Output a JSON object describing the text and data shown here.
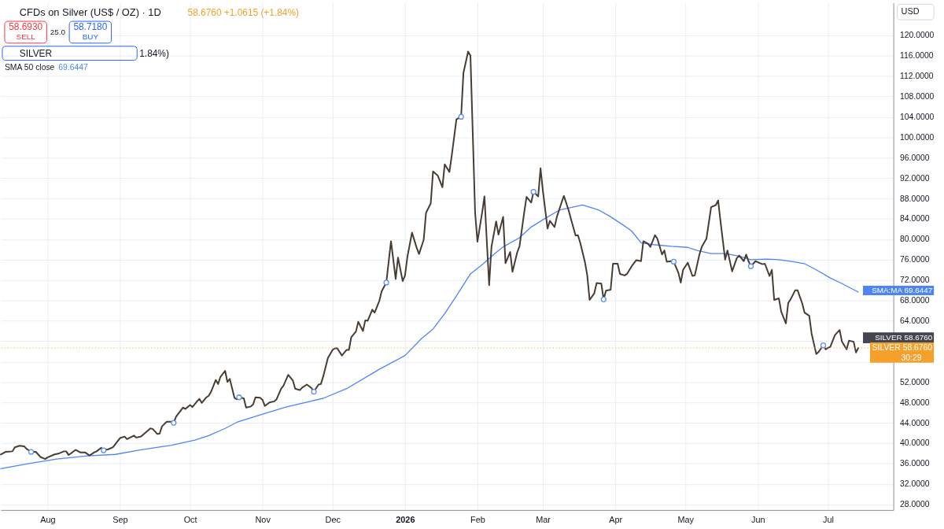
{
  "chart_data": {
    "type": "line",
    "title": "CFDs on Silver (US$ / OZ) · 1D",
    "xlim": [
      "2025-07-12",
      "2026-07-29"
    ],
    "xticks": [
      {
        "value": "2025-08-01",
        "label": "Aug"
      },
      {
        "value": "2025-09-01",
        "label": "Sep"
      },
      {
        "value": "2025-10-01",
        "label": "Oct"
      },
      {
        "value": "2025-11-01",
        "label": "Nov"
      },
      {
        "value": "2025-12-01",
        "label": "Dec"
      },
      {
        "value": "2026-01-01",
        "label": "2026"
      },
      {
        "value": "2026-02-01",
        "label": "Feb"
      },
      {
        "value": "2026-03-01",
        "label": "Mar"
      },
      {
        "value": "2026-04-01",
        "label": "Apr"
      },
      {
        "value": "2026-05-01",
        "label": "May"
      },
      {
        "value": "2026-06-01",
        "label": "Jun"
      },
      {
        "value": "2026-07-01",
        "label": "Jul"
      }
    ],
    "ylim": [
      26.9,
      126.4
    ],
    "yticks": [
      {
        "value": 28,
        "label": "28.0000"
      },
      {
        "value": 32,
        "label": "32.0000"
      },
      {
        "value": 36,
        "label": "36.0000"
      },
      {
        "value": 40,
        "label": "40.0000"
      },
      {
        "value": 44,
        "label": "44.0000"
      },
      {
        "value": 48,
        "label": "48.0000"
      },
      {
        "value": 52,
        "label": "52.0000"
      },
      {
        "value": 56,
        "label": null
      },
      {
        "value": 60,
        "label": null
      },
      {
        "value": 64,
        "label": "64.0000"
      },
      {
        "value": 68,
        "label": "68.0000"
      },
      {
        "value": 72,
        "label": "72.0000"
      },
      {
        "value": 76,
        "label": "76.0000"
      },
      {
        "value": 80,
        "label": "80.0000"
      },
      {
        "value": 84,
        "label": "84.0000"
      },
      {
        "value": 88,
        "label": "88.0000"
      },
      {
        "value": 92,
        "label": "92.0000"
      },
      {
        "value": 96,
        "label": "96.0000"
      },
      {
        "value": 100,
        "label": "100.0000"
      },
      {
        "value": 104,
        "label": "104.0000"
      },
      {
        "value": 108,
        "label": "108.0000"
      },
      {
        "value": 112,
        "label": "112.0000"
      },
      {
        "value": 116,
        "label": "116.0000"
      },
      {
        "value": 120,
        "label": "120.0000"
      }
    ],
    "grid": true,
    "series": [
      {
        "color": "#4d85f5",
        "x": [
          "2025-07-12",
          "2025-07-24",
          "2025-08-05",
          "2025-08-18",
          "2025-08-30",
          "2025-09-10",
          "2025-09-23",
          "2025-10-03",
          "2025-10-09",
          "2025-10-16",
          "2025-10-21",
          "2025-11-01",
          "2025-11-11",
          "2025-11-27",
          "2025-12-07",
          "2025-12-21",
          "2026-01-01",
          "2026-01-08",
          "2026-01-13",
          "2026-01-18",
          "2026-01-23",
          "2026-01-29",
          "2026-02-03",
          "2026-02-08",
          "2026-02-12",
          "2026-02-19",
          "2026-02-24",
          "2026-03-02",
          "2026-03-08",
          "2026-03-18",
          "2026-03-25",
          "2026-03-30",
          "2026-04-04",
          "2026-04-08",
          "2026-04-12",
          "2026-04-18",
          "2026-04-25",
          "2026-05-02",
          "2026-05-06",
          "2026-05-12",
          "2026-05-18",
          "2026-05-24",
          "2026-05-29",
          "2026-06-05",
          "2026-06-10",
          "2026-06-16",
          "2026-06-21",
          "2026-06-26",
          "2026-07-02",
          "2026-07-07",
          "2026-07-14"
        ],
        "values": [
          35.0,
          36.0,
          36.9,
          37.5,
          37.8,
          38.7,
          39.6,
          40.6,
          41.5,
          42.9,
          44.1,
          45.7,
          47.1,
          48.8,
          50.7,
          54.5,
          57.2,
          60.5,
          62.4,
          65.4,
          68.9,
          73.2,
          75.0,
          77.0,
          78.5,
          80.3,
          82.4,
          84.1,
          85.7,
          86.7,
          85.7,
          84.4,
          82.9,
          81.6,
          79.3,
          78.9,
          78.6,
          78.4,
          77.8,
          77.2,
          77.2,
          76.7,
          76.0,
          76.1,
          76.0,
          75.6,
          75.2,
          74.0,
          72.4,
          71.3,
          69.6447
        ]
      },
      {
        "color": "#463c31",
        "x": [
          "2025-07-12",
          "2025-07-14",
          "2025-07-17",
          "2025-07-18",
          "2025-07-20",
          "2025-07-22",
          "2025-07-23",
          "2025-07-25",
          "2025-07-27",
          "2025-07-29",
          "2025-07-31",
          "2025-08-01",
          "2025-08-04",
          "2025-08-06",
          "2025-08-08",
          "2025-08-09",
          "2025-08-10",
          "2025-08-11",
          "2025-08-13",
          "2025-08-15",
          "2025-08-17",
          "2025-08-19",
          "2025-08-21",
          "2025-08-22",
          "2025-08-24",
          "2025-08-25",
          "2025-08-27",
          "2025-08-29",
          "2025-08-30",
          "2025-09-01",
          "2025-09-03",
          "2025-09-04",
          "2025-09-07",
          "2025-09-08",
          "2025-09-10",
          "2025-09-11",
          "2025-09-14",
          "2025-09-15",
          "2025-09-17",
          "2025-09-18",
          "2025-09-19",
          "2025-09-21",
          "2025-09-23",
          "2025-09-24",
          "2025-09-25",
          "2025-09-28",
          "2025-09-29",
          "2025-10-01",
          "2025-10-02",
          "2025-10-04",
          "2025-10-05",
          "2025-10-06",
          "2025-10-08",
          "2025-10-09",
          "2025-10-10",
          "2025-10-12",
          "2025-10-13",
          "2025-10-14",
          "2025-10-16",
          "2025-10-17",
          "2025-10-18",
          "2025-10-20",
          "2025-10-21",
          "2025-10-22",
          "2025-10-24",
          "2025-10-25",
          "2025-10-27",
          "2025-10-28",
          "2025-10-29",
          "2025-10-31",
          "2025-11-01",
          "2025-11-02",
          "2025-11-04",
          "2025-11-06",
          "2025-11-07",
          "2025-11-09",
          "2025-11-10",
          "2025-11-12",
          "2025-11-14",
          "2025-11-15",
          "2025-11-17",
          "2025-11-18",
          "2025-11-20",
          "2025-11-22",
          "2025-11-23",
          "2025-11-25",
          "2025-11-26",
          "2025-11-27",
          "2025-11-29",
          "2025-12-01",
          "2025-12-02",
          "2025-12-03",
          "2025-12-05",
          "2025-12-07",
          "2025-12-08",
          "2025-12-09",
          "2025-12-11",
          "2025-12-12",
          "2025-12-14",
          "2025-12-15",
          "2025-12-16",
          "2025-12-18",
          "2025-12-19",
          "2025-12-21",
          "2025-12-22",
          "2025-12-24",
          "2025-12-26",
          "2025-12-28",
          "2025-12-29",
          "2025-12-31",
          "2026-01-01",
          "2026-01-02",
          "2026-01-04",
          "2026-01-06",
          "2026-01-07",
          "2026-01-09",
          "2026-01-10",
          "2026-01-12",
          "2026-01-13",
          "2026-01-15",
          "2026-01-17",
          "2026-01-18",
          "2026-01-20",
          "2026-01-21",
          "2026-01-23",
          "2026-01-25",
          "2026-01-26",
          "2026-01-28",
          "2026-01-29",
          "2026-01-31",
          "2026-02-01",
          "2026-02-03",
          "2026-02-04",
          "2026-02-06",
          "2026-02-07",
          "2026-02-09",
          "2026-02-10",
          "2026-02-12",
          "2026-02-13",
          "2026-02-15",
          "2026-02-16",
          "2026-02-18",
          "2026-02-19",
          "2026-02-21",
          "2026-02-22",
          "2026-02-24",
          "2026-02-25",
          "2026-02-27",
          "2026-02-28",
          "2026-03-01",
          "2026-03-03",
          "2026-03-04",
          "2026-03-06",
          "2026-03-07",
          "2026-03-09",
          "2026-03-10",
          "2026-03-12",
          "2026-03-13",
          "2026-03-15",
          "2026-03-16",
          "2026-03-17",
          "2026-03-19",
          "2026-03-20",
          "2026-03-21",
          "2026-03-23",
          "2026-03-24",
          "2026-03-26",
          "2026-03-27",
          "2026-03-28",
          "2026-03-30",
          "2026-03-31",
          "2026-04-02",
          "2026-04-03",
          "2026-04-05",
          "2026-04-06",
          "2026-04-08",
          "2026-04-10",
          "2026-04-12",
          "2026-04-13",
          "2026-04-15",
          "2026-04-16",
          "2026-04-18",
          "2026-04-19",
          "2026-04-21",
          "2026-04-22",
          "2026-04-23",
          "2026-04-25",
          "2026-04-26",
          "2026-04-28",
          "2026-04-29",
          "2026-04-30",
          "2026-05-02",
          "2026-05-04",
          "2026-05-05",
          "2026-05-07",
          "2026-05-08",
          "2026-05-10",
          "2026-05-12",
          "2026-05-14",
          "2026-05-15",
          "2026-05-16",
          "2026-05-18",
          "2026-05-19",
          "2026-05-21",
          "2026-05-23",
          "2026-05-24",
          "2026-05-26",
          "2026-05-27",
          "2026-05-28",
          "2026-05-29",
          "2026-05-31",
          "2026-06-01",
          "2026-06-03",
          "2026-06-04",
          "2026-06-06",
          "2026-06-07",
          "2026-06-08",
          "2026-06-10",
          "2026-06-11",
          "2026-06-13",
          "2026-06-14",
          "2026-06-15",
          "2026-06-17",
          "2026-06-18",
          "2026-06-20",
          "2026-06-21",
          "2026-06-23",
          "2026-06-24",
          "2026-06-26",
          "2026-06-27",
          "2026-06-29",
          "2026-06-30",
          "2026-07-01",
          "2026-07-02",
          "2026-07-04",
          "2026-07-06",
          "2026-07-07",
          "2026-07-09",
          "2026-07-10",
          "2026-07-12",
          "2026-07-13",
          "2026-07-14"
        ],
        "values": [
          37.8,
          38.3,
          38.4,
          39.2,
          39.5,
          39.4,
          38.9,
          38.3,
          38.3,
          37.3,
          36.9,
          37.2,
          37.8,
          38.0,
          38.4,
          38.4,
          37.7,
          38.0,
          38.7,
          38.2,
          38.2,
          37.6,
          38.2,
          38.4,
          39.1,
          38.6,
          38.8,
          39.2,
          39.8,
          41.0,
          41.3,
          40.8,
          41.5,
          41.1,
          41.3,
          41.7,
          42.9,
          42.8,
          41.8,
          41.9,
          43.3,
          44.2,
          44.2,
          44.0,
          45.2,
          47.0,
          46.7,
          47.5,
          47.1,
          48.2,
          48.7,
          47.9,
          49.0,
          49.3,
          50.1,
          52.4,
          51.6,
          53.0,
          54.2,
          52.0,
          52.6,
          48.9,
          48.6,
          49.0,
          48.8,
          47.0,
          47.2,
          47.6,
          49.0,
          48.9,
          48.5,
          47.3,
          48.0,
          48.2,
          48.6,
          50.7,
          51.3,
          53.4,
          52.3,
          50.7,
          50.4,
          50.9,
          51.5,
          50.8,
          50.1,
          51.5,
          51.6,
          53.1,
          56.7,
          58.3,
          58.6,
          58.6,
          57.2,
          58.3,
          58.3,
          60.8,
          61.9,
          63.8,
          62.0,
          64.1,
          64.0,
          66.2,
          65.6,
          67.9,
          69.8,
          71.5,
          79.6,
          72.2,
          76.4,
          71.8,
          72.9,
          76.5,
          81.3,
          78.3,
          77.1,
          79.9,
          85.2,
          87.0,
          93.3,
          92.5,
          90.2,
          94.7,
          93.2,
          96.4,
          103.5,
          104.0,
          112.6,
          116.8,
          116.0,
          85.2,
          79.5,
          85.2,
          88.4,
          71.0,
          78.5,
          83.5,
          80.9,
          84.4,
          75.3,
          77.5,
          73.6,
          77.4,
          78.6,
          85.2,
          88.3,
          87.2,
          89.3,
          88.4,
          93.9,
          89.5,
          82.1,
          83.6,
          82.4,
          84.4,
          87.2,
          88.5,
          85.7,
          84.0,
          80.7,
          80.8,
          79.3,
          75.5,
          72.9,
          68.1,
          69.4,
          71.4,
          71.3,
          68.2,
          69.9,
          70.1,
          75.2,
          75.2,
          73.2,
          72.9,
          73.2,
          74.7,
          75.9,
          75.7,
          79.6,
          79.1,
          78.5,
          80.8,
          80.1,
          77.0,
          77.8,
          75.6,
          75.7,
          75.6,
          73.4,
          71.5,
          74.0,
          75.4,
          72.8,
          72.9,
          77.0,
          78.5,
          80.1,
          86.3,
          86.7,
          87.6,
          83.6,
          76.0,
          77.8,
          73.7,
          76.3,
          76.8,
          75.7,
          77.0,
          75.7,
          74.7,
          75.7,
          75.5,
          75.1,
          75.2,
          72.8,
          74.0,
          68.1,
          68.4,
          65.8,
          63.5,
          67.5,
          68.2,
          70.0,
          70.0,
          67.4,
          65.6,
          65.0,
          61.5,
          57.5,
          57.9,
          59.2,
          58.4,
          58.7,
          58.9,
          61.2,
          62.2,
          59.9,
          58.4,
          60.1,
          59.9,
          57.8,
          58.676
        ]
      },
      {
        "type": "scatter",
        "marker": "circle",
        "color": "#5b8ef0",
        "x": [
          "2025-07-25",
          "2025-08-25",
          "2025-09-24",
          "2025-10-22",
          "2025-11-23",
          "2025-12-24",
          "2026-01-25",
          "2026-02-25",
          "2026-03-27",
          "2026-04-26",
          "2026-05-29",
          "2026-06-29"
        ],
        "values": [
          38.3,
          38.6,
          44.0,
          49.0,
          50.1,
          71.5,
          104.0,
          89.3,
          68.2,
          75.6,
          74.7,
          59.2
        ]
      }
    ],
    "ref_lines": [
      {
        "axis": "y",
        "value": 58.676,
        "label": "SILVER 58.6760",
        "color": "#f5a02a",
        "line_style": "dotted"
      }
    ],
    "annotations": [
      "58.6760 +1.0615 (+1.84%)",
      "58.6930",
      "SELL",
      "25.0",
      "58.7180",
      "BUY",
      "SILVER",
      "1.84%)",
      "SMA 50 close",
      "69.6447",
      "USD",
      {
        "text": "SMA:MA 69.6447",
        "x": "2026-07-14",
        "y": 69.6447
      },
      {
        "text": "SILVER 58.6760",
        "x": "2026-07-14",
        "y": 58.676
      },
      "30:29"
    ]
  }
}
